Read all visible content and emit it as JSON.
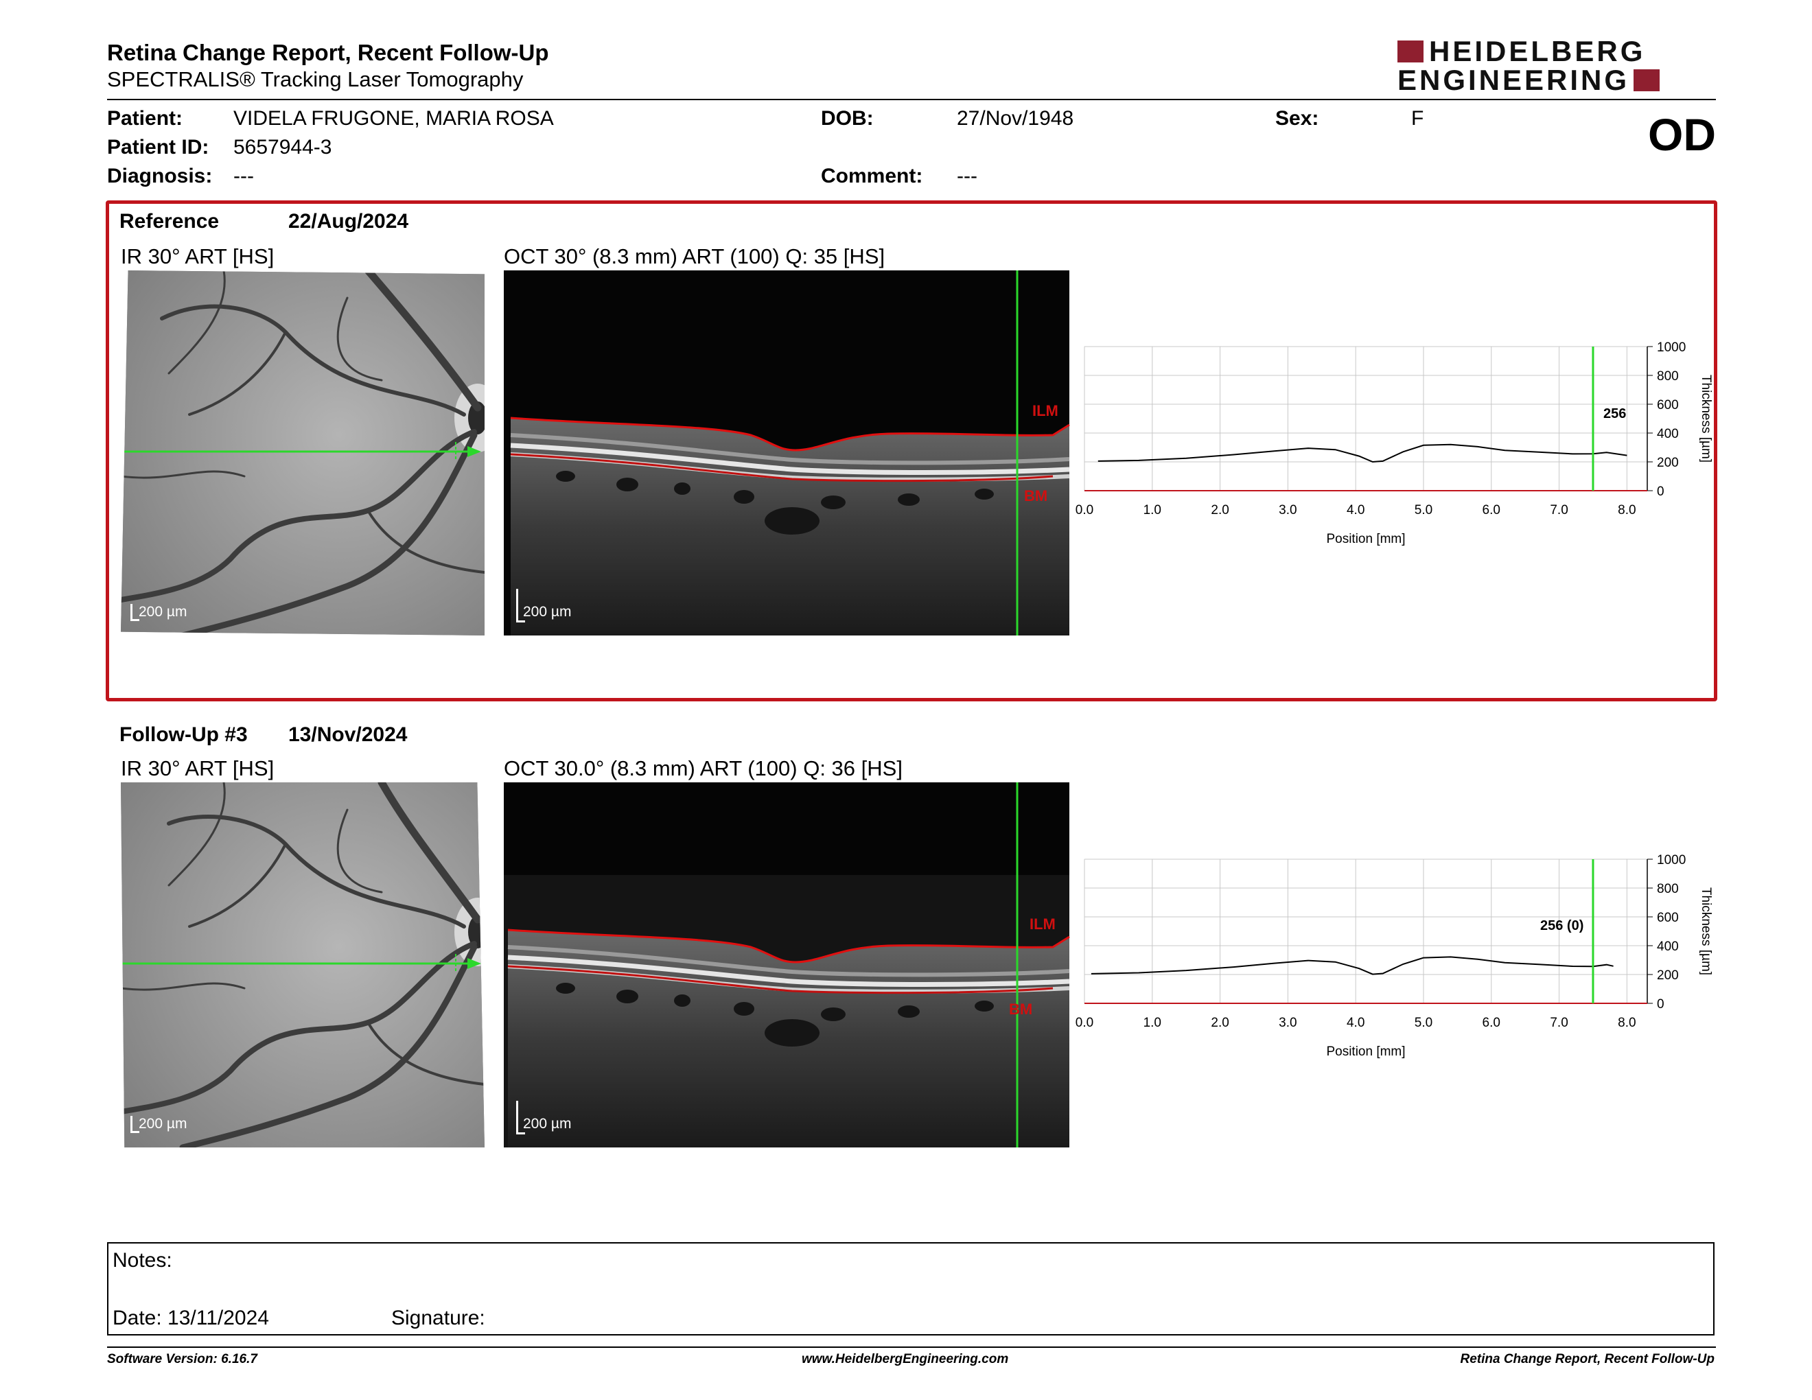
{
  "header": {
    "title": "Retina Change Report, Recent Follow-Up",
    "subtitle": "SPECTRALIS® Tracking Laser Tomography",
    "logo_line1": "HEIDELBERG",
    "logo_line2": "ENGINEERING",
    "eye": "OD"
  },
  "patient": {
    "patient_label": "Patient:",
    "patient_name": "VIDELA FRUGONE, MARIA ROSA",
    "id_label": "Patient ID:",
    "id_value": "5657944-3",
    "diagnosis_label": "Diagnosis:",
    "diagnosis_value": "---",
    "dob_label": "DOB:",
    "dob_value": "27/Nov/1948",
    "comment_label": "Comment:",
    "comment_value": "---",
    "sex_label": "Sex:",
    "sex_value": "F"
  },
  "reference": {
    "label": "Reference",
    "date": "22/Aug/2024",
    "ir_caption": "IR 30° ART [HS]",
    "oct_caption": "OCT 30° (8.3 mm) ART (100) Q: 35 [HS]",
    "ir_scale": "200 µm",
    "oct_scale": "200 µm",
    "ilm": "ILM",
    "bm": "BM",
    "marker_value": "256"
  },
  "followup": {
    "label": "Follow-Up #3",
    "date": "13/Nov/2024",
    "ir_caption": "IR 30° ART [HS]",
    "oct_caption": "OCT 30.0° (8.3 mm) ART (100) Q: 36 [HS]",
    "ir_scale": "200 µm",
    "oct_scale": "200 µm",
    "ilm": "ILM",
    "bm": "BM",
    "marker_value": "256 (0)"
  },
  "chart_data": [
    {
      "type": "line",
      "xlabel": "Position [mm]",
      "ylabel": "Thickness [µm]",
      "xlim": [
        0.0,
        8.3
      ],
      "ylim": [
        0,
        1000
      ],
      "x_ticks": [
        "0.0",
        "1.0",
        "2.0",
        "3.0",
        "4.0",
        "5.0",
        "6.0",
        "7.0",
        "8.0"
      ],
      "y_ticks": [
        "0",
        "200",
        "400",
        "600",
        "800",
        "1000"
      ],
      "grid": true,
      "marker_x": 7.5,
      "marker_label": "256",
      "x": [
        0.2,
        0.8,
        1.5,
        2.2,
        2.8,
        3.3,
        3.7,
        4.05,
        4.25,
        4.4,
        4.7,
        5.0,
        5.4,
        5.8,
        6.2,
        6.7,
        7.2,
        7.5,
        7.7,
        8.0
      ],
      "values": [
        205,
        210,
        225,
        250,
        275,
        295,
        285,
        240,
        200,
        205,
        270,
        315,
        320,
        305,
        280,
        268,
        255,
        256,
        265,
        245
      ]
    },
    {
      "type": "line",
      "xlabel": "Position [mm]",
      "ylabel": "Thickness [µm]",
      "xlim": [
        0.0,
        8.3
      ],
      "ylim": [
        0,
        1000
      ],
      "x_ticks": [
        "0.0",
        "1.0",
        "2.0",
        "3.0",
        "4.0",
        "5.0",
        "6.0",
        "7.0",
        "8.0"
      ],
      "y_ticks": [
        "0",
        "200",
        "400",
        "600",
        "800",
        "1000"
      ],
      "grid": true,
      "marker_x": 7.5,
      "marker_label": "256 (0)",
      "x": [
        0.1,
        0.8,
        1.5,
        2.2,
        2.8,
        3.3,
        3.7,
        4.05,
        4.25,
        4.4,
        4.7,
        5.0,
        5.4,
        5.8,
        6.2,
        6.7,
        7.2,
        7.5,
        7.7,
        7.8
      ],
      "values": [
        205,
        212,
        228,
        252,
        278,
        297,
        287,
        242,
        202,
        207,
        272,
        316,
        322,
        306,
        282,
        270,
        257,
        256,
        268,
        258
      ]
    }
  ],
  "notes": {
    "notes_label": "Notes:",
    "date_label": "Date: 13/11/2024",
    "signature_label": "Signature:"
  },
  "footer": {
    "software": "Software Version: 6.16.7",
    "website": "www.HeidelbergEngineering.com",
    "report_name": "Retina Change Report, Recent Follow-Up"
  },
  "colors": {
    "frame_red": "#c0141c",
    "scan_green": "#2bd82b",
    "layer_red": "#d01010",
    "brand": "#8f1f2f"
  }
}
